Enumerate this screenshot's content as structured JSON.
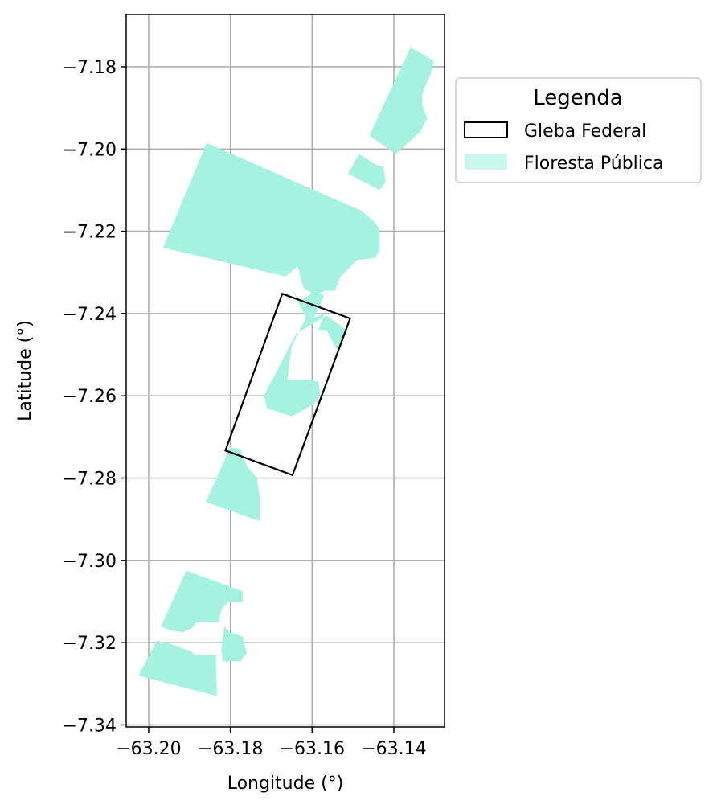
{
  "chart_data": {
    "type": "map",
    "xlabel": "Longitude (°)",
    "ylabel": "Latitude (°)",
    "xlim": [
      -63.2055,
      -63.1276
    ],
    "ylim": [
      -7.3405,
      -7.1673
    ],
    "x_ticks": [
      {
        "value": -63.2,
        "label": "−63.20"
      },
      {
        "value": -63.18,
        "label": "−63.18"
      },
      {
        "value": -63.16,
        "label": "−63.16"
      },
      {
        "value": -63.14,
        "label": "−63.14"
      }
    ],
    "y_ticks": [
      {
        "value": -7.18,
        "label": "−7.18"
      },
      {
        "value": -7.2,
        "label": "−7.20"
      },
      {
        "value": -7.22,
        "label": "−7.22"
      },
      {
        "value": -7.24,
        "label": "−7.24"
      },
      {
        "value": -7.26,
        "label": "−7.26"
      },
      {
        "value": -7.28,
        "label": "−7.28"
      },
      {
        "value": -7.3,
        "label": "−7.30"
      },
      {
        "value": -7.32,
        "label": "−7.32"
      },
      {
        "value": -7.34,
        "label": "−7.34"
      }
    ],
    "grid": true,
    "legend": {
      "title": "Legenda",
      "placement": "outside-right-top",
      "entries": [
        {
          "label": "Gleba Federal",
          "style": "outline",
          "color": "#000000"
        },
        {
          "label": "Floresta Pública",
          "style": "fill",
          "color": "#a5f2e0"
        }
      ]
    },
    "layers": [
      {
        "name": "Floresta Pública",
        "color": "#a5f2e0",
        "polygons": [
          [
            [
              -63.1359,
              -7.1753
            ],
            [
              -63.1303,
              -7.1785
            ],
            [
              -63.1308,
              -7.1815
            ],
            [
              -63.1318,
              -7.1835
            ],
            [
              -63.133,
              -7.1865
            ],
            [
              -63.133,
              -7.1895
            ],
            [
              -63.1318,
              -7.1925
            ],
            [
              -63.1335,
              -7.1958
            ],
            [
              -63.1395,
              -7.2012
            ],
            [
              -63.146,
              -7.1967
            ]
          ],
          [
            [
              -63.1485,
              -7.2012
            ],
            [
              -63.145,
              -7.2035
            ],
            [
              -63.1425,
              -7.2045
            ],
            [
              -63.142,
              -7.208
            ],
            [
              -63.1435,
              -7.21
            ],
            [
              -63.1512,
              -7.206
            ]
          ],
          [
            [
              -63.1858,
              -7.1985
            ],
            [
              -63.1965,
              -7.224
            ],
            [
              -63.1665,
              -7.231
            ],
            [
              -63.1635,
              -7.2285
            ],
            [
              -63.1625,
              -7.2325
            ],
            [
              -63.162,
              -7.234
            ],
            [
              -63.159,
              -7.2355
            ],
            [
              -63.157,
              -7.2345
            ],
            [
              -63.1545,
              -7.2345
            ],
            [
              -63.153,
              -7.231
            ],
            [
              -63.149,
              -7.227
            ],
            [
              -63.1445,
              -7.2265
            ],
            [
              -63.1435,
              -7.2245
            ],
            [
              -63.1435,
              -7.2195
            ],
            [
              -63.1445,
              -7.218
            ],
            [
              -63.1455,
              -7.217
            ],
            [
              -63.148,
              -7.215
            ]
          ],
          [
            [
              -63.165,
              -7.234
            ],
            [
              -63.163,
              -7.237
            ],
            [
              -63.16,
              -7.235
            ],
            [
              -63.157,
              -7.2355
            ],
            [
              -63.1595,
              -7.241
            ],
            [
              -63.157,
              -7.24
            ],
            [
              -63.1585,
              -7.244
            ],
            [
              -63.1565,
              -7.244
            ],
            [
              -63.1538,
              -7.249
            ],
            [
              -63.1515,
              -7.244
            ],
            [
              -63.1565,
              -7.2405
            ],
            [
              -63.164,
              -7.245
            ],
            [
              -63.1718,
              -7.26
            ],
            [
              -63.171,
              -7.263
            ],
            [
              -63.165,
              -7.265
            ],
            [
              -63.1595,
              -7.262
            ],
            [
              -63.158,
              -7.2595
            ],
            [
              -63.1585,
              -7.2565
            ],
            [
              -63.162,
              -7.256
            ],
            [
              -63.166,
              -7.256
            ],
            [
              -63.165,
              -7.248
            ],
            [
              -63.1615,
              -7.241
            ]
          ],
          [
            [
              -63.18,
              -7.2725
            ],
            [
              -63.186,
              -7.2858
            ],
            [
              -63.1728,
              -7.2905
            ],
            [
              -63.1728,
              -7.2845
            ],
            [
              -63.1735,
              -7.28
            ],
            [
              -63.176,
              -7.277
            ],
            [
              -63.1775,
              -7.273
            ]
          ],
          [
            [
              -63.1908,
              -7.3025
            ],
            [
              -63.197,
              -7.316
            ],
            [
              -63.195,
              -7.317
            ],
            [
              -63.1915,
              -7.3175
            ],
            [
              -63.1895,
              -7.3165
            ],
            [
              -63.1882,
              -7.315
            ],
            [
              -63.183,
              -7.315
            ],
            [
              -63.182,
              -7.3115
            ],
            [
              -63.1805,
              -7.31
            ],
            [
              -63.177,
              -7.31
            ],
            [
              -63.177,
              -7.3075
            ]
          ],
          [
            [
              -63.1815,
              -7.316
            ],
            [
              -63.1822,
              -7.322
            ],
            [
              -63.1818,
              -7.3245
            ],
            [
              -63.1775,
              -7.3245
            ],
            [
              -63.176,
              -7.3225
            ],
            [
              -63.177,
              -7.3185
            ],
            [
              -63.18,
              -7.3175
            ]
          ],
          [
            [
              -63.198,
              -7.3195
            ],
            [
              -63.194,
              -7.3205
            ],
            [
              -63.19,
              -7.322
            ],
            [
              -63.1885,
              -7.323
            ],
            [
              -63.1835,
              -7.323
            ],
            [
              -63.1833,
              -7.333
            ],
            [
              -63.2025,
              -7.328
            ]
          ]
        ]
      },
      {
        "name": "Gleba Federal",
        "color": "#000000",
        "polygons": [
          [
            [
              -63.1673,
              -7.2352
            ],
            [
              -63.1507,
              -7.2412
            ],
            [
              -63.1648,
              -7.2793
            ],
            [
              -63.1812,
              -7.2733
            ]
          ]
        ]
      }
    ]
  }
}
